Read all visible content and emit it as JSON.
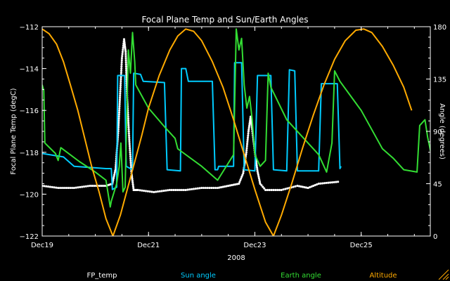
{
  "chart_data": {
    "type": "line",
    "title": "Focal Plane Temp and Sun/Earth Angles",
    "xlabel": "2008",
    "ylabel_left": "Focal Plane Temp (degC)",
    "ylabel_right": "Angle (degrees)",
    "xlim": [
      0,
      7.3
    ],
    "ylim_left": [
      -122,
      -112
    ],
    "ylim_right": [
      0,
      180
    ],
    "x_tick_labels": [
      {
        "x": 0,
        "label": "Dec19"
      },
      {
        "x": 2,
        "label": "Dec21"
      },
      {
        "x": 4,
        "label": "Dec23"
      },
      {
        "x": 6,
        "label": "Dec25"
      }
    ],
    "y_left_ticks": [
      -122,
      -120,
      -118,
      -116,
      -114,
      -112
    ],
    "y_right_ticks": [
      0,
      45,
      90,
      135,
      180
    ],
    "y_left_tick_labels": [
      "−122",
      "−120",
      "−118",
      "−116",
      "−114",
      "−112"
    ],
    "y_right_tick_labels": [
      "0",
      "45",
      "90",
      "135",
      "180"
    ],
    "legend": [
      {
        "label": "FP_temp",
        "color": "#ffffff"
      },
      {
        "label": "Sun angle",
        "color": "#00ccff"
      },
      {
        "label": "Earth angle",
        "color": "#33dd33"
      },
      {
        "label": "Altitude",
        "color": "#ffaa00"
      }
    ],
    "series": [
      {
        "name": "FP_temp",
        "axis": "left",
        "style": "markers",
        "color": "#ffffff",
        "points": [
          [
            0.0,
            -119.6
          ],
          [
            0.3,
            -119.7
          ],
          [
            0.6,
            -119.7
          ],
          [
            0.9,
            -119.6
          ],
          [
            1.2,
            -119.6
          ],
          [
            1.32,
            -119.5
          ],
          [
            1.38,
            -118.8
          ],
          [
            1.43,
            -117
          ],
          [
            1.47,
            -115
          ],
          [
            1.5,
            -113.5
          ],
          [
            1.54,
            -112.6
          ],
          [
            1.57,
            -113.2
          ],
          [
            1.6,
            -115.5
          ],
          [
            1.64,
            -117.5
          ],
          [
            1.68,
            -119
          ],
          [
            1.72,
            -119.8
          ],
          [
            1.8,
            -119.8
          ],
          [
            2.1,
            -119.9
          ],
          [
            2.4,
            -119.8
          ],
          [
            2.7,
            -119.8
          ],
          [
            3.0,
            -119.7
          ],
          [
            3.3,
            -119.7
          ],
          [
            3.5,
            -119.6
          ],
          [
            3.7,
            -119.5
          ],
          [
            3.78,
            -119
          ],
          [
            3.84,
            -118
          ],
          [
            3.88,
            -117
          ],
          [
            3.92,
            -116.3
          ],
          [
            3.95,
            -116.9
          ],
          [
            4.0,
            -118
          ],
          [
            4.05,
            -118.9
          ],
          [
            4.1,
            -119.5
          ],
          [
            4.2,
            -119.8
          ],
          [
            4.5,
            -119.8
          ],
          [
            4.8,
            -119.6
          ],
          [
            5.0,
            -119.7
          ],
          [
            5.2,
            -119.5
          ],
          [
            5.6,
            -119.4
          ]
        ]
      },
      {
        "name": "Sun angle",
        "axis": "right",
        "color": "#00ccff",
        "points": [
          [
            0.0,
            71
          ],
          [
            0.4,
            68
          ],
          [
            0.6,
            60
          ],
          [
            1.2,
            58
          ],
          [
            1.3,
            58
          ],
          [
            1.32,
            40
          ],
          [
            1.4,
            42
          ],
          [
            1.42,
            138
          ],
          [
            1.55,
            138
          ],
          [
            1.58,
            60
          ],
          [
            1.7,
            57
          ],
          [
            1.72,
            140
          ],
          [
            1.85,
            139
          ],
          [
            1.9,
            133
          ],
          [
            2.3,
            132
          ],
          [
            2.35,
            57
          ],
          [
            2.6,
            56
          ],
          [
            2.62,
            144
          ],
          [
            2.7,
            144
          ],
          [
            2.75,
            133
          ],
          [
            3.2,
            133
          ],
          [
            3.25,
            57
          ],
          [
            3.3,
            57
          ],
          [
            3.32,
            60
          ],
          [
            3.6,
            60
          ],
          [
            3.62,
            149
          ],
          [
            3.75,
            149
          ],
          [
            3.8,
            57
          ],
          [
            4.0,
            56
          ],
          [
            4.05,
            138
          ],
          [
            4.3,
            138
          ],
          [
            4.35,
            57
          ],
          [
            4.6,
            56
          ],
          [
            4.65,
            143
          ],
          [
            4.75,
            142
          ],
          [
            4.8,
            56
          ],
          [
            5.2,
            56
          ],
          [
            5.25,
            131
          ],
          [
            5.55,
            131
          ],
          [
            5.6,
            58
          ],
          [
            5.62,
            60
          ]
        ]
      },
      {
        "name": "Earth angle",
        "axis": "right",
        "color": "#33dd33",
        "points": [
          [
            0.0,
            130
          ],
          [
            0.03,
            125
          ],
          [
            0.05,
            80
          ],
          [
            0.25,
            71
          ],
          [
            0.3,
            65
          ],
          [
            0.35,
            76
          ],
          [
            0.7,
            64
          ],
          [
            1.0,
            55
          ],
          [
            1.2,
            48
          ],
          [
            1.28,
            25
          ],
          [
            1.3,
            30
          ],
          [
            1.4,
            45
          ],
          [
            1.45,
            60
          ],
          [
            1.48,
            80
          ],
          [
            1.52,
            38
          ],
          [
            1.56,
            42
          ],
          [
            1.62,
            160
          ],
          [
            1.66,
            140
          ],
          [
            1.7,
            175
          ],
          [
            1.74,
            150
          ],
          [
            1.76,
            130
          ],
          [
            2.0,
            110
          ],
          [
            2.3,
            94
          ],
          [
            2.5,
            84
          ],
          [
            2.55,
            75
          ],
          [
            3.0,
            60
          ],
          [
            3.3,
            48
          ],
          [
            3.6,
            70
          ],
          [
            3.65,
            178
          ],
          [
            3.7,
            160
          ],
          [
            3.75,
            170
          ],
          [
            3.8,
            130
          ],
          [
            3.85,
            110
          ],
          [
            3.9,
            120
          ],
          [
            3.95,
            100
          ],
          [
            4.0,
            70
          ],
          [
            4.1,
            60
          ],
          [
            4.2,
            65
          ],
          [
            4.25,
            140
          ],
          [
            4.3,
            128
          ],
          [
            4.6,
            100
          ],
          [
            4.9,
            85
          ],
          [
            5.2,
            70
          ],
          [
            5.35,
            55
          ],
          [
            5.45,
            80
          ],
          [
            5.5,
            142
          ],
          [
            5.6,
            133
          ],
          [
            6.0,
            108
          ],
          [
            6.4,
            75
          ],
          [
            6.6,
            67
          ],
          [
            6.8,
            57
          ],
          [
            7.05,
            55
          ],
          [
            7.1,
            95
          ],
          [
            7.2,
            100
          ],
          [
            7.25,
            85
          ],
          [
            7.35,
            63
          ],
          [
            7.5,
            70
          ],
          [
            7.6,
            92
          ],
          [
            7.75,
            105
          ],
          [
            7.78,
            140
          ],
          [
            7.82,
            165
          ],
          [
            7.86,
            160
          ],
          [
            7.9,
            150
          ],
          [
            8.0,
            130
          ],
          [
            8.05,
            120
          ],
          [
            8.1,
            125
          ],
          [
            8.15,
            115
          ]
        ]
      },
      {
        "name": "Altitude",
        "axis": "right",
        "color": "#ffaa00",
        "points": [
          [
            0.0,
            178
          ],
          [
            0.13,
            174
          ],
          [
            0.27,
            165
          ],
          [
            0.4,
            150
          ],
          [
            0.53,
            130
          ],
          [
            0.67,
            108
          ],
          [
            0.8,
            84
          ],
          [
            0.93,
            60
          ],
          [
            1.07,
            38
          ],
          [
            1.2,
            15
          ],
          [
            1.33,
            0
          ],
          [
            1.47,
            18
          ],
          [
            1.6,
            40
          ],
          [
            1.73,
            62
          ],
          [
            1.87,
            86
          ],
          [
            2.0,
            110
          ],
          [
            2.2,
            138
          ],
          [
            2.4,
            160
          ],
          [
            2.55,
            172
          ],
          [
            2.7,
            178
          ],
          [
            2.85,
            176
          ],
          [
            3.0,
            168
          ],
          [
            3.2,
            150
          ],
          [
            3.4,
            128
          ],
          [
            3.6,
            100
          ],
          [
            3.8,
            70
          ],
          [
            4.0,
            40
          ],
          [
            4.2,
            12
          ],
          [
            4.35,
            0
          ],
          [
            4.5,
            18
          ],
          [
            4.7,
            46
          ],
          [
            4.9,
            76
          ],
          [
            5.1,
            104
          ],
          [
            5.3,
            130
          ],
          [
            5.5,
            152
          ],
          [
            5.7,
            168
          ],
          [
            5.9,
            177
          ],
          [
            6.05,
            178
          ],
          [
            6.2,
            175
          ],
          [
            6.4,
            163
          ],
          [
            6.6,
            147
          ],
          [
            6.8,
            128
          ],
          [
            6.95,
            108
          ]
        ]
      }
    ]
  }
}
